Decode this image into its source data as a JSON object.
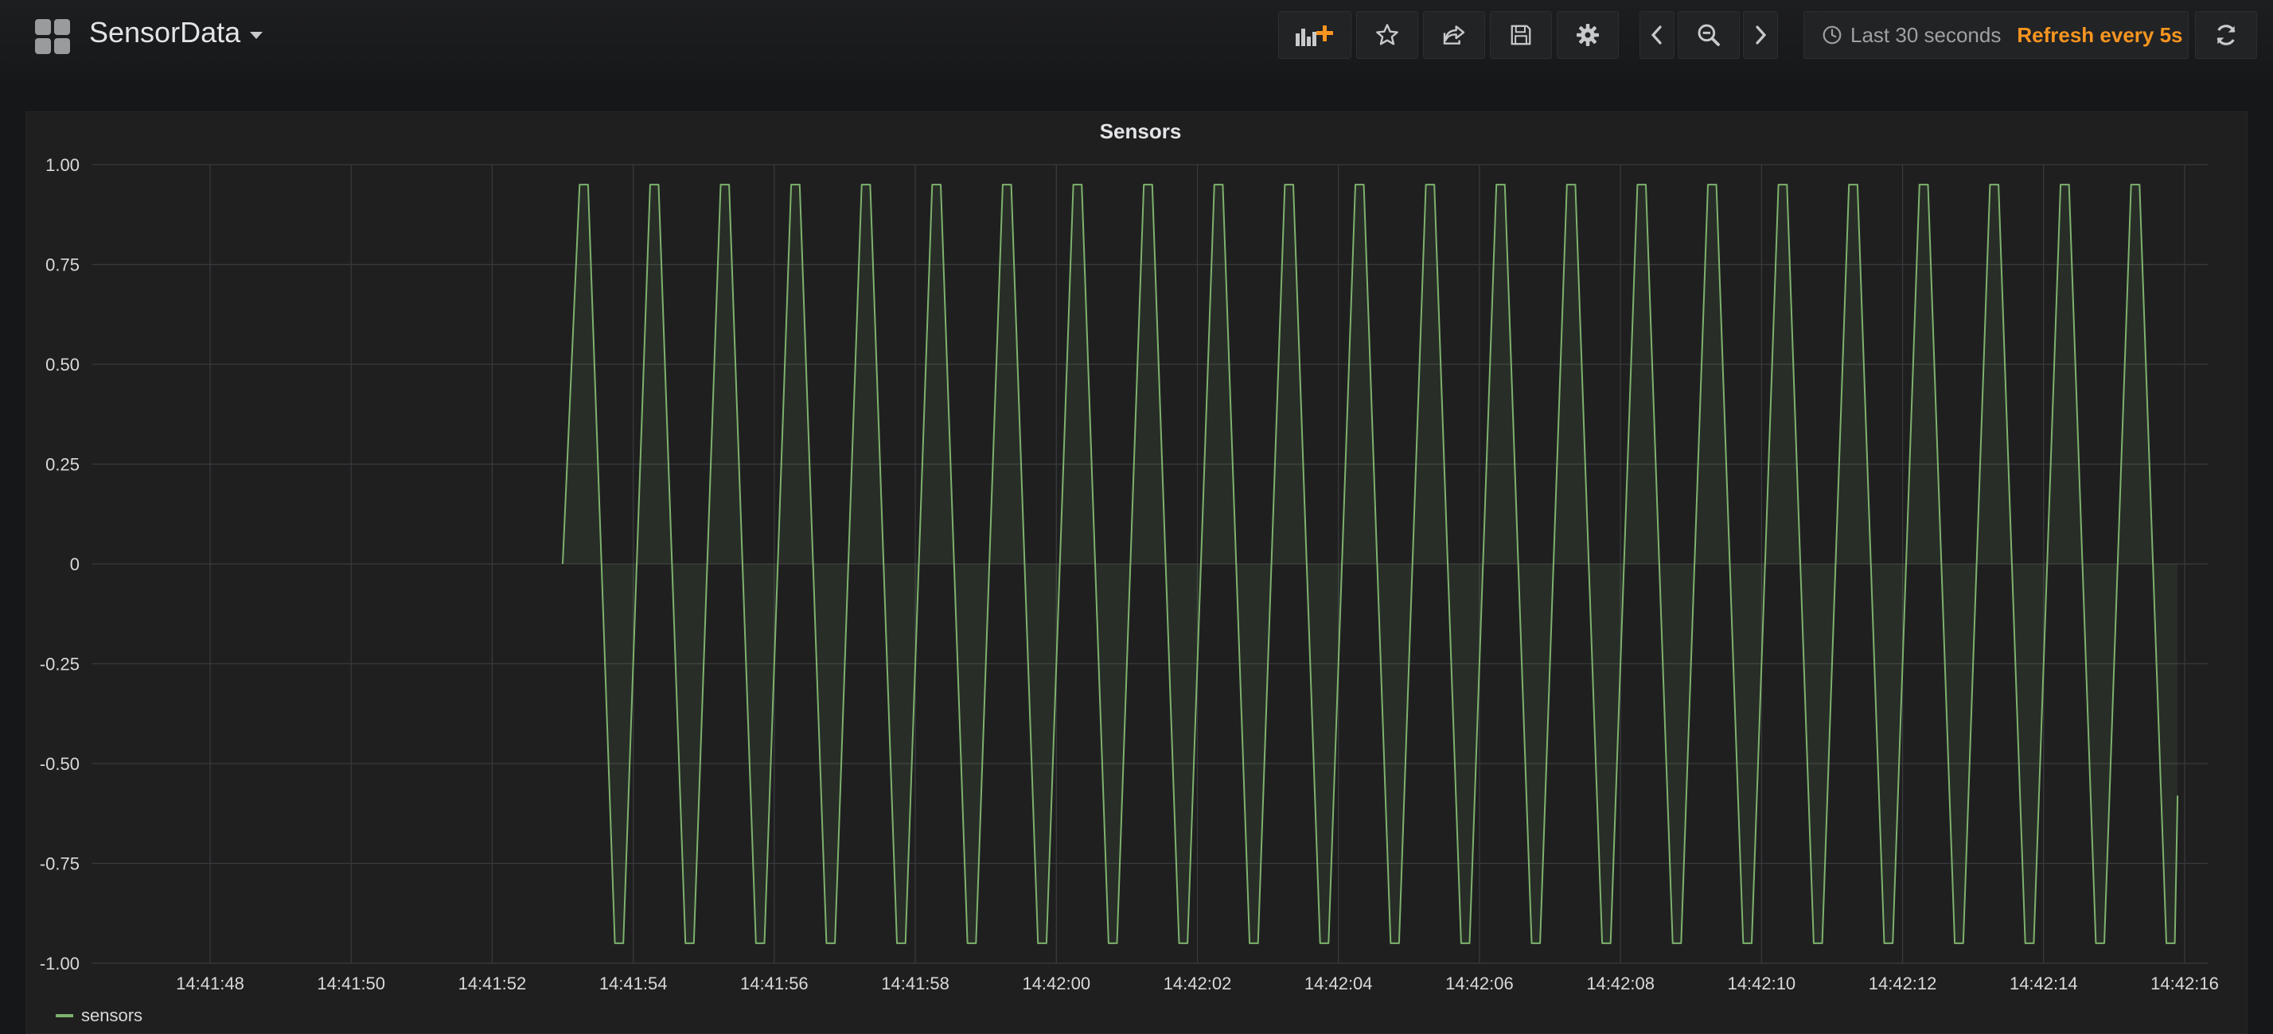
{
  "header": {
    "dashboard_title": "SensorData",
    "time_range": "Last 30 seconds",
    "refresh": "Refresh every 5s"
  },
  "toolbar": {
    "icons": [
      "add-panel-icon",
      "star-icon",
      "share-icon",
      "save-icon",
      "gear-icon",
      "chevron-left-icon",
      "zoom-out-icon",
      "chevron-right-icon",
      "clock-icon",
      "refresh-icon"
    ]
  },
  "colors": {
    "series": "#7eb26d",
    "accent": "#f79520",
    "background": "#161719",
    "panel": "#1f1f20",
    "grid": "#3a3b3e"
  },
  "panel": {
    "title": "Sensors",
    "legend": "sensors"
  },
  "chart_data": {
    "type": "line",
    "title": "Sensors",
    "xlabel": "",
    "ylabel": "",
    "ylim": [
      -1.0,
      1.0
    ],
    "y_ticks": [
      "1.00",
      "0.75",
      "0.50",
      "0.25",
      "0",
      "-0.25",
      "-0.50",
      "-0.75",
      "-1.00"
    ],
    "x_ticks": [
      "14:41:48",
      "14:41:50",
      "14:41:52",
      "14:41:54",
      "14:41:56",
      "14:41:58",
      "14:42:00",
      "14:42:02",
      "14:42:04",
      "14:42:06",
      "14:42:08",
      "14:42:10",
      "14:42:12",
      "14:42:14",
      "14:42:16"
    ],
    "grid": true,
    "fill_below": true,
    "series": [
      {
        "name": "sensors",
        "color": "#7eb26d",
        "start_time": "14:41:53.0",
        "end_time": "14:42:15.9",
        "period_seconds": 1.0,
        "amplitude": 0.95,
        "peak_times": [
          "14:41:53.3",
          "14:41:54.3",
          "14:41:55.3",
          "14:41:56.3",
          "14:41:57.3",
          "14:41:58.3",
          "14:41:59.3",
          "14:42:00.3",
          "14:42:01.3",
          "14:42:02.3",
          "14:42:03.3",
          "14:42:04.3",
          "14:42:05.3",
          "14:42:06.3",
          "14:42:07.3",
          "14:42:08.3",
          "14:42:09.3",
          "14:42:10.3",
          "14:42:11.3",
          "14:42:12.3",
          "14:42:13.3",
          "14:42:14.3",
          "14:42:15.3"
        ],
        "peak_value": 0.95,
        "trough_value": -0.95,
        "first_value": 0,
        "last_value": -0.58
      }
    ]
  }
}
